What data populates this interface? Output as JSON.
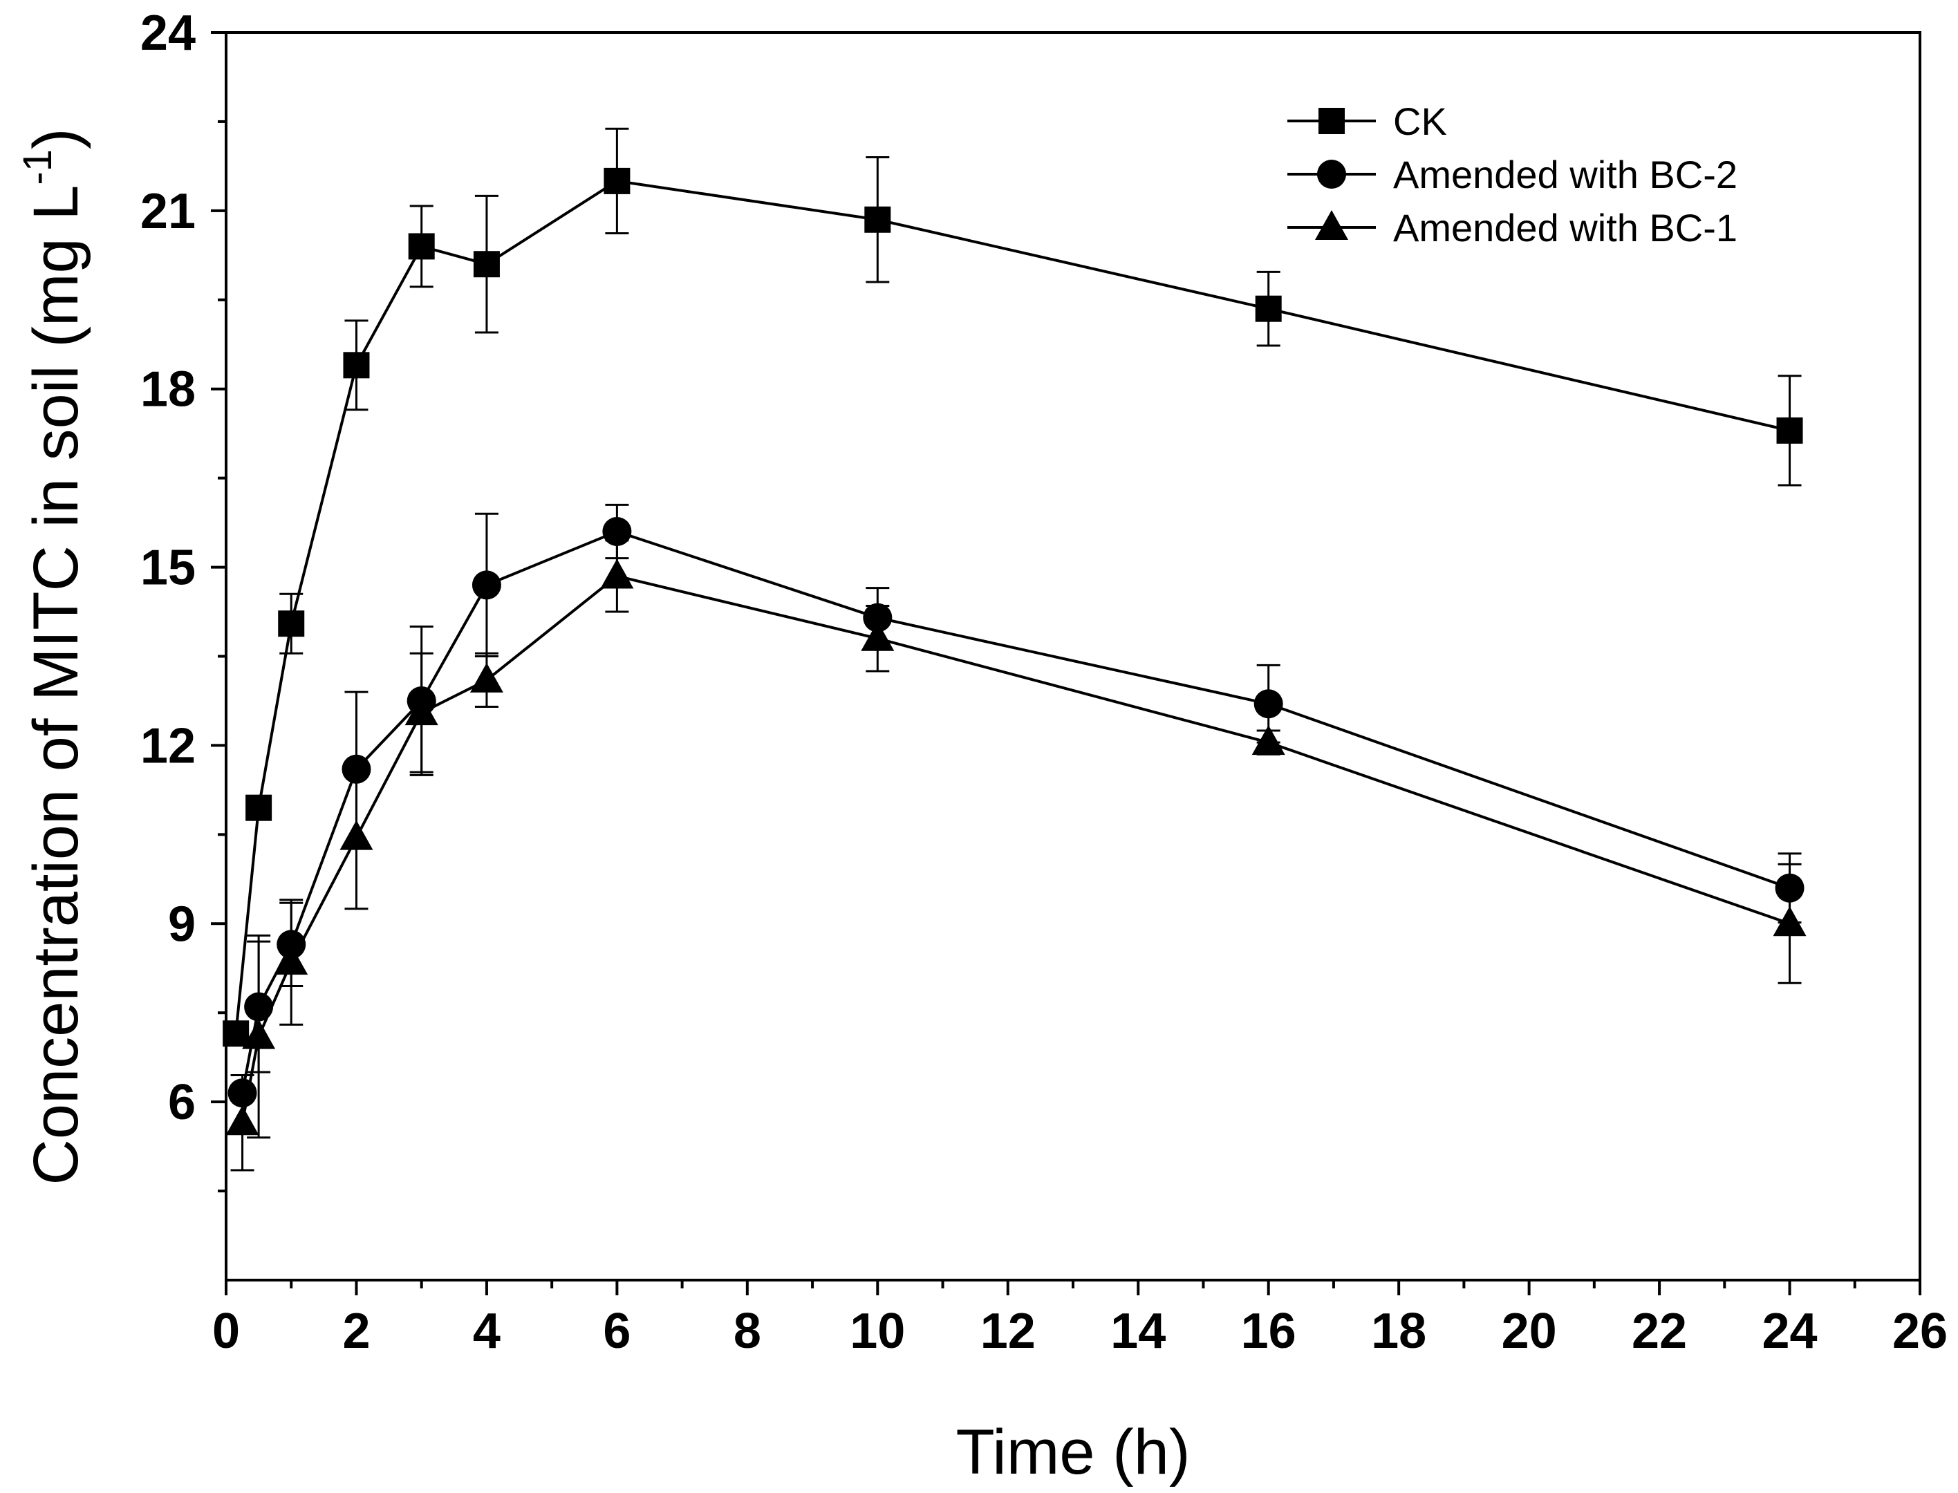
{
  "chart_data": {
    "type": "line",
    "xlabel": "Time (h)",
    "ylabel": {
      "main": "Concentration of MITC in soil (mg L",
      "sup": "-1",
      "close": ")"
    },
    "xlim": [
      0,
      26
    ],
    "ylim": [
      3,
      24
    ],
    "xticks": [
      "0",
      "2",
      "4",
      "6",
      "8",
      "10",
      "12",
      "14",
      "16",
      "18",
      "20",
      "22",
      "24",
      "26"
    ],
    "yticks": [
      "6",
      "9",
      "12",
      "15",
      "18",
      "21",
      "24"
    ],
    "grid": false,
    "legend_position": "top-right",
    "color": "#000000",
    "series": [
      {
        "name": "CK",
        "marker": "square",
        "points": [
          {
            "x": 0.15,
            "y": 7.15,
            "err": 0.0
          },
          {
            "x": 0.5,
            "y": 10.95,
            "err": 0.0
          },
          {
            "x": 1,
            "y": 14.05,
            "err": 0.5
          },
          {
            "x": 2,
            "y": 18.4,
            "err": 0.75
          },
          {
            "x": 3,
            "y": 20.4,
            "err": 0.68
          },
          {
            "x": 4,
            "y": 20.1,
            "err": 1.15
          },
          {
            "x": 6,
            "y": 21.5,
            "err": 0.88
          },
          {
            "x": 10,
            "y": 20.85,
            "err": 1.05
          },
          {
            "x": 16,
            "y": 19.35,
            "err": 0.62
          },
          {
            "x": 24,
            "y": 17.3,
            "err": 0.92
          }
        ]
      },
      {
        "name": "Amended with BC-2",
        "marker": "circle",
        "points": [
          {
            "x": 0.25,
            "y": 6.15,
            "err": 0.0
          },
          {
            "x": 0.5,
            "y": 7.6,
            "err": 1.1
          },
          {
            "x": 1,
            "y": 8.65,
            "err": 0.7
          },
          {
            "x": 2,
            "y": 11.6,
            "err": 1.3
          },
          {
            "x": 3,
            "y": 12.75,
            "err": 1.25
          },
          {
            "x": 4,
            "y": 14.7,
            "err": 1.2
          },
          {
            "x": 6,
            "y": 15.6,
            "err": 0.45
          },
          {
            "x": 10,
            "y": 14.15,
            "err": 0.5
          },
          {
            "x": 16,
            "y": 12.7,
            "err": 0.65
          },
          {
            "x": 24,
            "y": 9.6,
            "err": 0.58
          }
        ]
      },
      {
        "name": "Amended with BC-1",
        "marker": "triangle",
        "points": [
          {
            "x": 0.25,
            "y": 5.65,
            "err": 0.8
          },
          {
            "x": 0.5,
            "y": 7.1,
            "err": 1.7
          },
          {
            "x": 1,
            "y": 8.35,
            "err": 1.05
          },
          {
            "x": 2,
            "y": 10.45,
            "err": 1.2
          },
          {
            "x": 3,
            "y": 12.55,
            "err": 1.0
          },
          {
            "x": 4,
            "y": 13.1,
            "err": 0.45
          },
          {
            "x": 6,
            "y": 14.85,
            "err": 0.6
          },
          {
            "x": 10,
            "y": 13.8,
            "err": 0.55
          },
          {
            "x": 16,
            "y": 12.05,
            "err": 0.2
          },
          {
            "x": 24,
            "y": 9.0,
            "err": 1.0
          }
        ]
      }
    ]
  }
}
